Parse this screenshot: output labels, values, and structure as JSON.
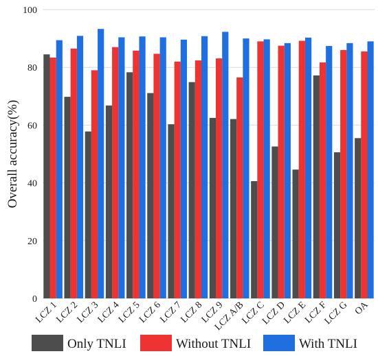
{
  "chart_data": {
    "type": "bar",
    "title": "",
    "xlabel": "",
    "ylabel": "Overall accuracy(%)",
    "ylim": [
      0,
      100
    ],
    "yticks": [
      "0",
      "20",
      "40",
      "60",
      "80",
      "100"
    ],
    "grid": "horizontal",
    "legend_position": "bottom",
    "categories": [
      "LCZ 1",
      "LCZ 2",
      "LCZ 3",
      "LCZ 4",
      "LCZ 5",
      "LCZ 6",
      "LCZ 7",
      "LCZ 8",
      "LCZ 9",
      "LCZ A/B",
      "LCZ C",
      "LCZ D",
      "LCZ E",
      "LCZ F",
      "LCZ G",
      "OA"
    ],
    "series": [
      {
        "name": "Only TNLI",
        "color": "#4d4d4d",
        "values": [
          84.5,
          69.8,
          57.8,
          66.8,
          78.3,
          71.1,
          60.3,
          74.9,
          62.5,
          62.1,
          40.6,
          52.6,
          44.6,
          77.2,
          50.6,
          55.5
        ]
      },
      {
        "name": "Without TNLI",
        "color": "#ee3333",
        "values": [
          83.4,
          86.5,
          79.0,
          87.0,
          85.8,
          84.7,
          82.0,
          82.4,
          83.1,
          76.5,
          89.0,
          87.5,
          89.2,
          81.7,
          86.0,
          85.5
        ]
      },
      {
        "name": "With TNLI",
        "color": "#1f6fe0",
        "values": [
          89.4,
          90.9,
          93.3,
          90.4,
          90.7,
          90.4,
          89.6,
          90.8,
          92.3,
          90.0,
          89.7,
          88.4,
          90.3,
          87.4,
          88.4,
          89.0
        ]
      }
    ]
  }
}
